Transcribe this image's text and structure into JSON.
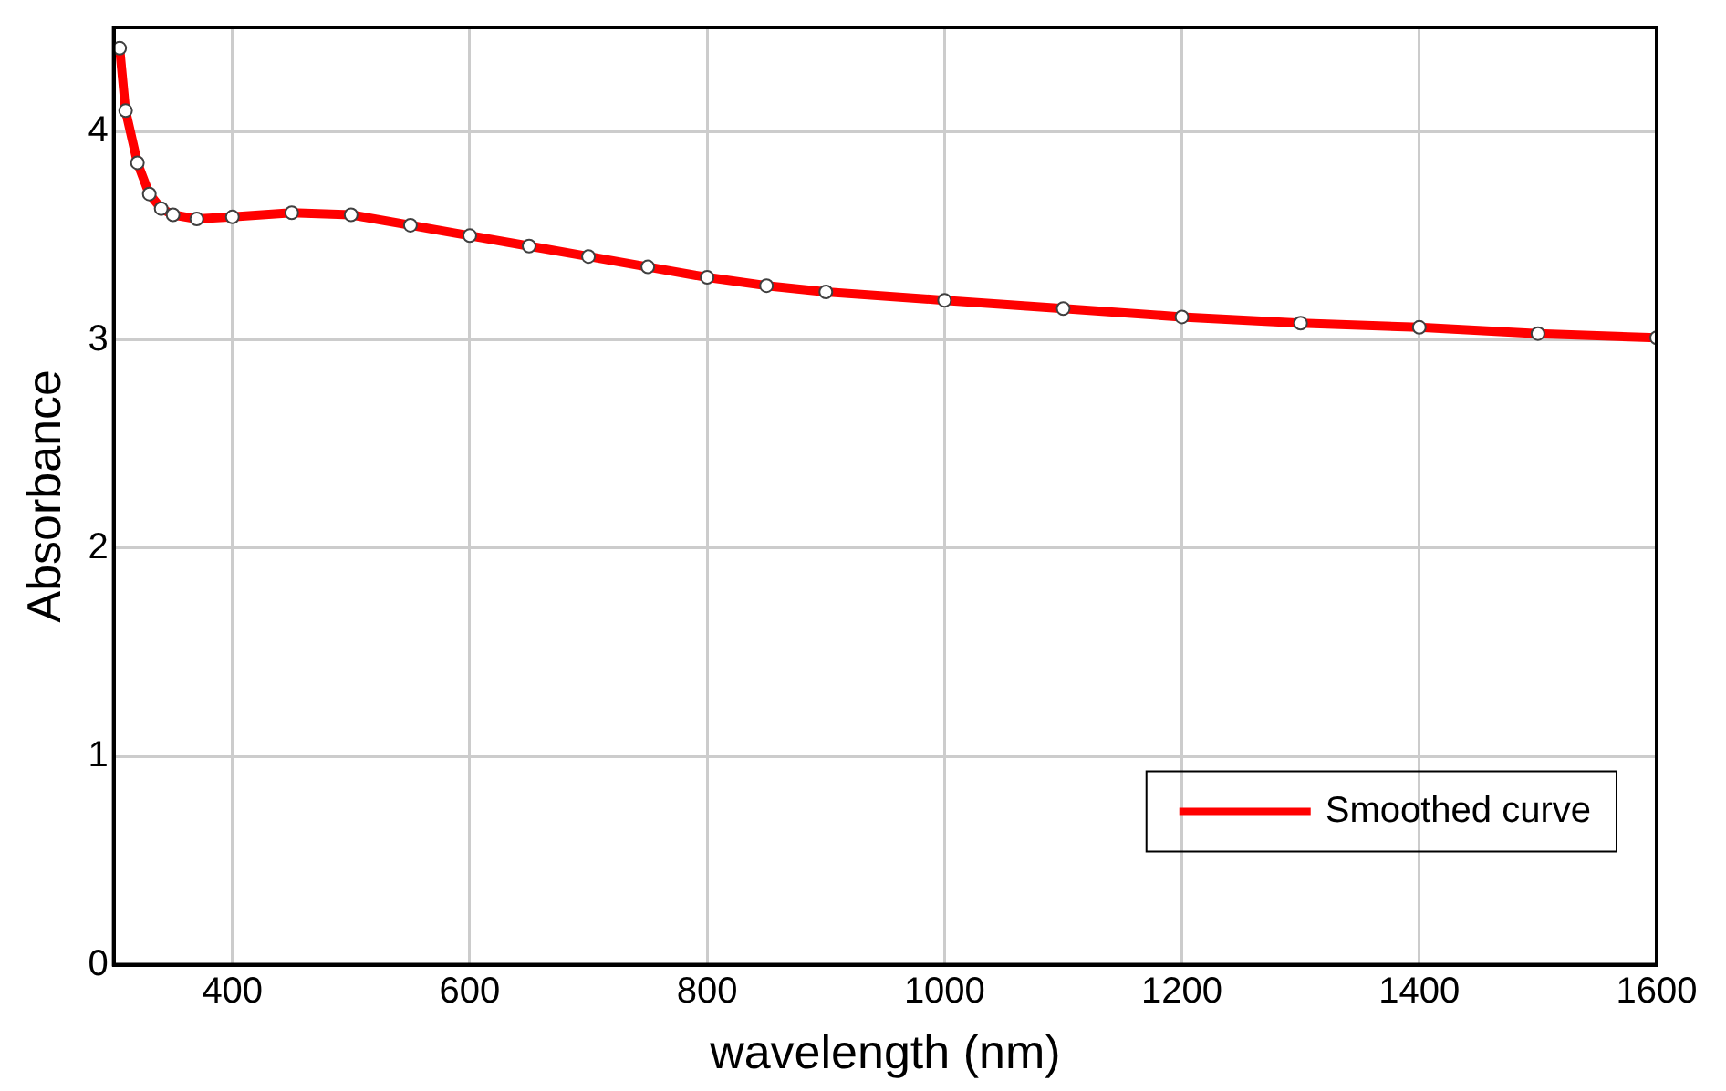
{
  "chart_data": {
    "type": "line",
    "xlabel": "wavelength (nm)",
    "ylabel": "Absorbance",
    "xlim": [
      300,
      1600
    ],
    "ylim": [
      0,
      4.5
    ],
    "xticks": [
      400,
      600,
      800,
      1000,
      1200,
      1400,
      1600
    ],
    "yticks": [
      0,
      1,
      2,
      3,
      4
    ],
    "grid": true,
    "legend": "bottom right",
    "x": [
      305,
      310,
      320,
      330,
      340,
      350,
      370,
      400,
      450,
      500,
      550,
      600,
      650,
      700,
      750,
      800,
      850,
      900,
      1000,
      1100,
      1200,
      1300,
      1400,
      1500,
      1600
    ],
    "series": [
      {
        "type": "scatter",
        "marker": "circle",
        "color": "#404040",
        "values": [
          4.4,
          4.1,
          3.85,
          3.7,
          3.63,
          3.6,
          3.58,
          3.59,
          3.61,
          3.6,
          3.55,
          3.5,
          3.45,
          3.4,
          3.35,
          3.3,
          3.26,
          3.23,
          3.19,
          3.15,
          3.11,
          3.08,
          3.06,
          3.03,
          3.01
        ]
      },
      {
        "name": "Smoothed curve",
        "color": "#ff0000",
        "marker": "none",
        "line_style": "solid",
        "values": [
          4.4,
          4.1,
          3.85,
          3.7,
          3.63,
          3.6,
          3.58,
          3.59,
          3.61,
          3.6,
          3.55,
          3.5,
          3.45,
          3.4,
          3.35,
          3.3,
          3.26,
          3.23,
          3.19,
          3.15,
          3.11,
          3.08,
          3.06,
          3.03,
          3.01
        ]
      }
    ]
  }
}
